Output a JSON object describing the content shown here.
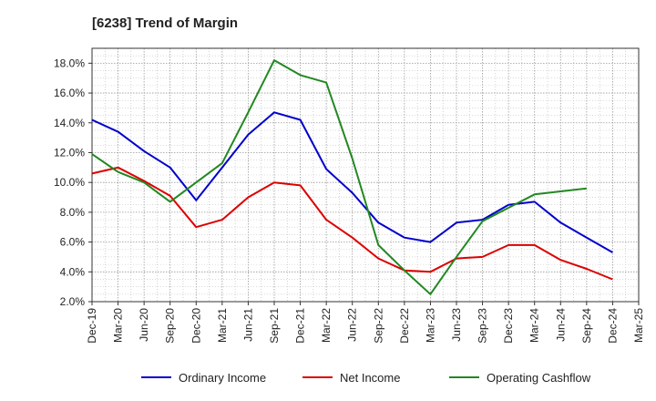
{
  "chart_data": {
    "type": "line",
    "title": "[6238]  Trend of Margin",
    "xlabel": "",
    "ylabel": "",
    "ylim": [
      2.0,
      19.0
    ],
    "y_ticks": [
      "2.0%",
      "4.0%",
      "6.0%",
      "8.0%",
      "10.0%",
      "12.0%",
      "14.0%",
      "16.0%",
      "18.0%"
    ],
    "y_tick_values": [
      2,
      4,
      6,
      8,
      10,
      12,
      14,
      16,
      18
    ],
    "categories": [
      "Dec-19",
      "Mar-20",
      "Jun-20",
      "Sep-20",
      "Dec-20",
      "Mar-21",
      "Jun-21",
      "Sep-21",
      "Dec-21",
      "Mar-22",
      "Jun-22",
      "Sep-22",
      "Dec-22",
      "Mar-23",
      "Jun-23",
      "Sep-23",
      "Dec-23",
      "Mar-24",
      "Jun-24",
      "Sep-24",
      "Dec-24",
      "Mar-25"
    ],
    "grid": true,
    "legend_position": "bottom",
    "series": [
      {
        "name": "Ordinary Income",
        "color": "#0000cc",
        "values": [
          14.2,
          13.4,
          12.1,
          11.0,
          8.8,
          11.0,
          13.2,
          14.7,
          14.2,
          10.9,
          9.3,
          7.3,
          6.3,
          6.0,
          7.3,
          7.5,
          8.5,
          8.7,
          7.3,
          6.3,
          5.3,
          null
        ]
      },
      {
        "name": "Net Income",
        "color": "#dd0000",
        "values": [
          10.6,
          11.0,
          10.1,
          9.1,
          7.0,
          7.5,
          9.0,
          10.0,
          9.8,
          7.5,
          6.3,
          4.9,
          4.1,
          4.0,
          4.9,
          5.0,
          5.8,
          5.8,
          4.8,
          4.2,
          3.5,
          null
        ]
      },
      {
        "name": "Operating Cashflow",
        "color": "#228822",
        "values": [
          11.9,
          10.7,
          10.0,
          8.7,
          10.0,
          11.3,
          14.7,
          18.2,
          17.2,
          16.7,
          11.6,
          5.8,
          4.1,
          2.5,
          5.0,
          7.4,
          8.3,
          9.2,
          9.4,
          9.6,
          null,
          null
        ]
      }
    ]
  }
}
